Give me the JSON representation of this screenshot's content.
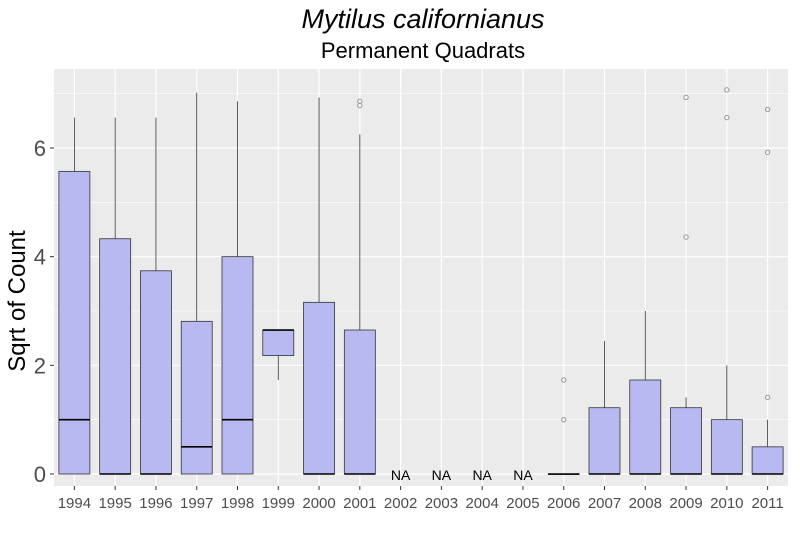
{
  "chart_data": {
    "type": "box",
    "title": "Mytilus californianus",
    "subtitle": "Permanent Quadrats",
    "xlabel": "",
    "ylabel": "Sqrt of Count",
    "ylim": [
      -0.3,
      7.3
    ],
    "yticks": [
      0,
      2,
      4,
      6
    ],
    "grid": true,
    "categories": [
      "1994",
      "1995",
      "1996",
      "1997",
      "1998",
      "1999",
      "2000",
      "2001",
      "2002",
      "2003",
      "2004",
      "2005",
      "2006",
      "2007",
      "2008",
      "2009",
      "2010",
      "2011"
    ],
    "boxes": [
      {
        "x": "1994",
        "lower": 0,
        "q1": 0,
        "median": 1.0,
        "q3": 5.57,
        "upper": 6.56,
        "outliers": []
      },
      {
        "x": "1995",
        "lower": 0,
        "q1": 0,
        "median": 0,
        "q3": 4.33,
        "upper": 6.56,
        "outliers": []
      },
      {
        "x": "1996",
        "lower": 0,
        "q1": 0,
        "median": 0,
        "q3": 3.74,
        "upper": 6.56,
        "outliers": []
      },
      {
        "x": "1997",
        "lower": 0,
        "q1": 0,
        "median": 0.5,
        "q3": 2.81,
        "upper": 7.02,
        "outliers": []
      },
      {
        "x": "1998",
        "lower": 0,
        "q1": 0,
        "median": 1.0,
        "q3": 4.0,
        "upper": 6.86,
        "outliers": []
      },
      {
        "x": "1999",
        "lower": 1.73,
        "q1": 2.18,
        "median": 2.65,
        "q3": 2.65,
        "upper": 2.65,
        "outliers": []
      },
      {
        "x": "2000",
        "lower": 0,
        "q1": 0,
        "median": 0,
        "q3": 3.16,
        "upper": 6.93,
        "outliers": []
      },
      {
        "x": "2001",
        "lower": 0,
        "q1": 0,
        "median": 0,
        "q3": 2.65,
        "upper": 6.25,
        "outliers": [
          6.78,
          6.86
        ]
      },
      {
        "x": "2002",
        "na": true
      },
      {
        "x": "2003",
        "na": true
      },
      {
        "x": "2004",
        "na": true
      },
      {
        "x": "2005",
        "na": true
      },
      {
        "x": "2006",
        "lower": 0,
        "q1": 0,
        "median": 0,
        "q3": 0,
        "upper": 0,
        "outliers": [
          1.0,
          1.73
        ]
      },
      {
        "x": "2007",
        "lower": 0,
        "q1": 0,
        "median": 0,
        "q3": 1.22,
        "upper": 2.45,
        "outliers": []
      },
      {
        "x": "2008",
        "lower": 0,
        "q1": 0,
        "median": 0,
        "q3": 1.73,
        "upper": 3.0,
        "outliers": []
      },
      {
        "x": "2009",
        "lower": 0,
        "q1": 0,
        "median": 0,
        "q3": 1.22,
        "upper": 1.41,
        "outliers": [
          4.36,
          6.93
        ]
      },
      {
        "x": "2010",
        "lower": 0,
        "q1": 0,
        "median": 0,
        "q3": 1.0,
        "upper": 2.0,
        "outliers": [
          6.56,
          7.07
        ]
      },
      {
        "x": "2011",
        "lower": 0,
        "q1": 0,
        "median": 0,
        "q3": 0.5,
        "upper": 1.0,
        "outliers": [
          1.41,
          5.92,
          6.71
        ]
      }
    ],
    "na_label": "NA",
    "colors": {
      "box_fill": "#b9b9f2",
      "panel_bg": "#ebebeb",
      "grid": "#ffffff",
      "outline": "#333333",
      "outlier": "#999999"
    }
  }
}
